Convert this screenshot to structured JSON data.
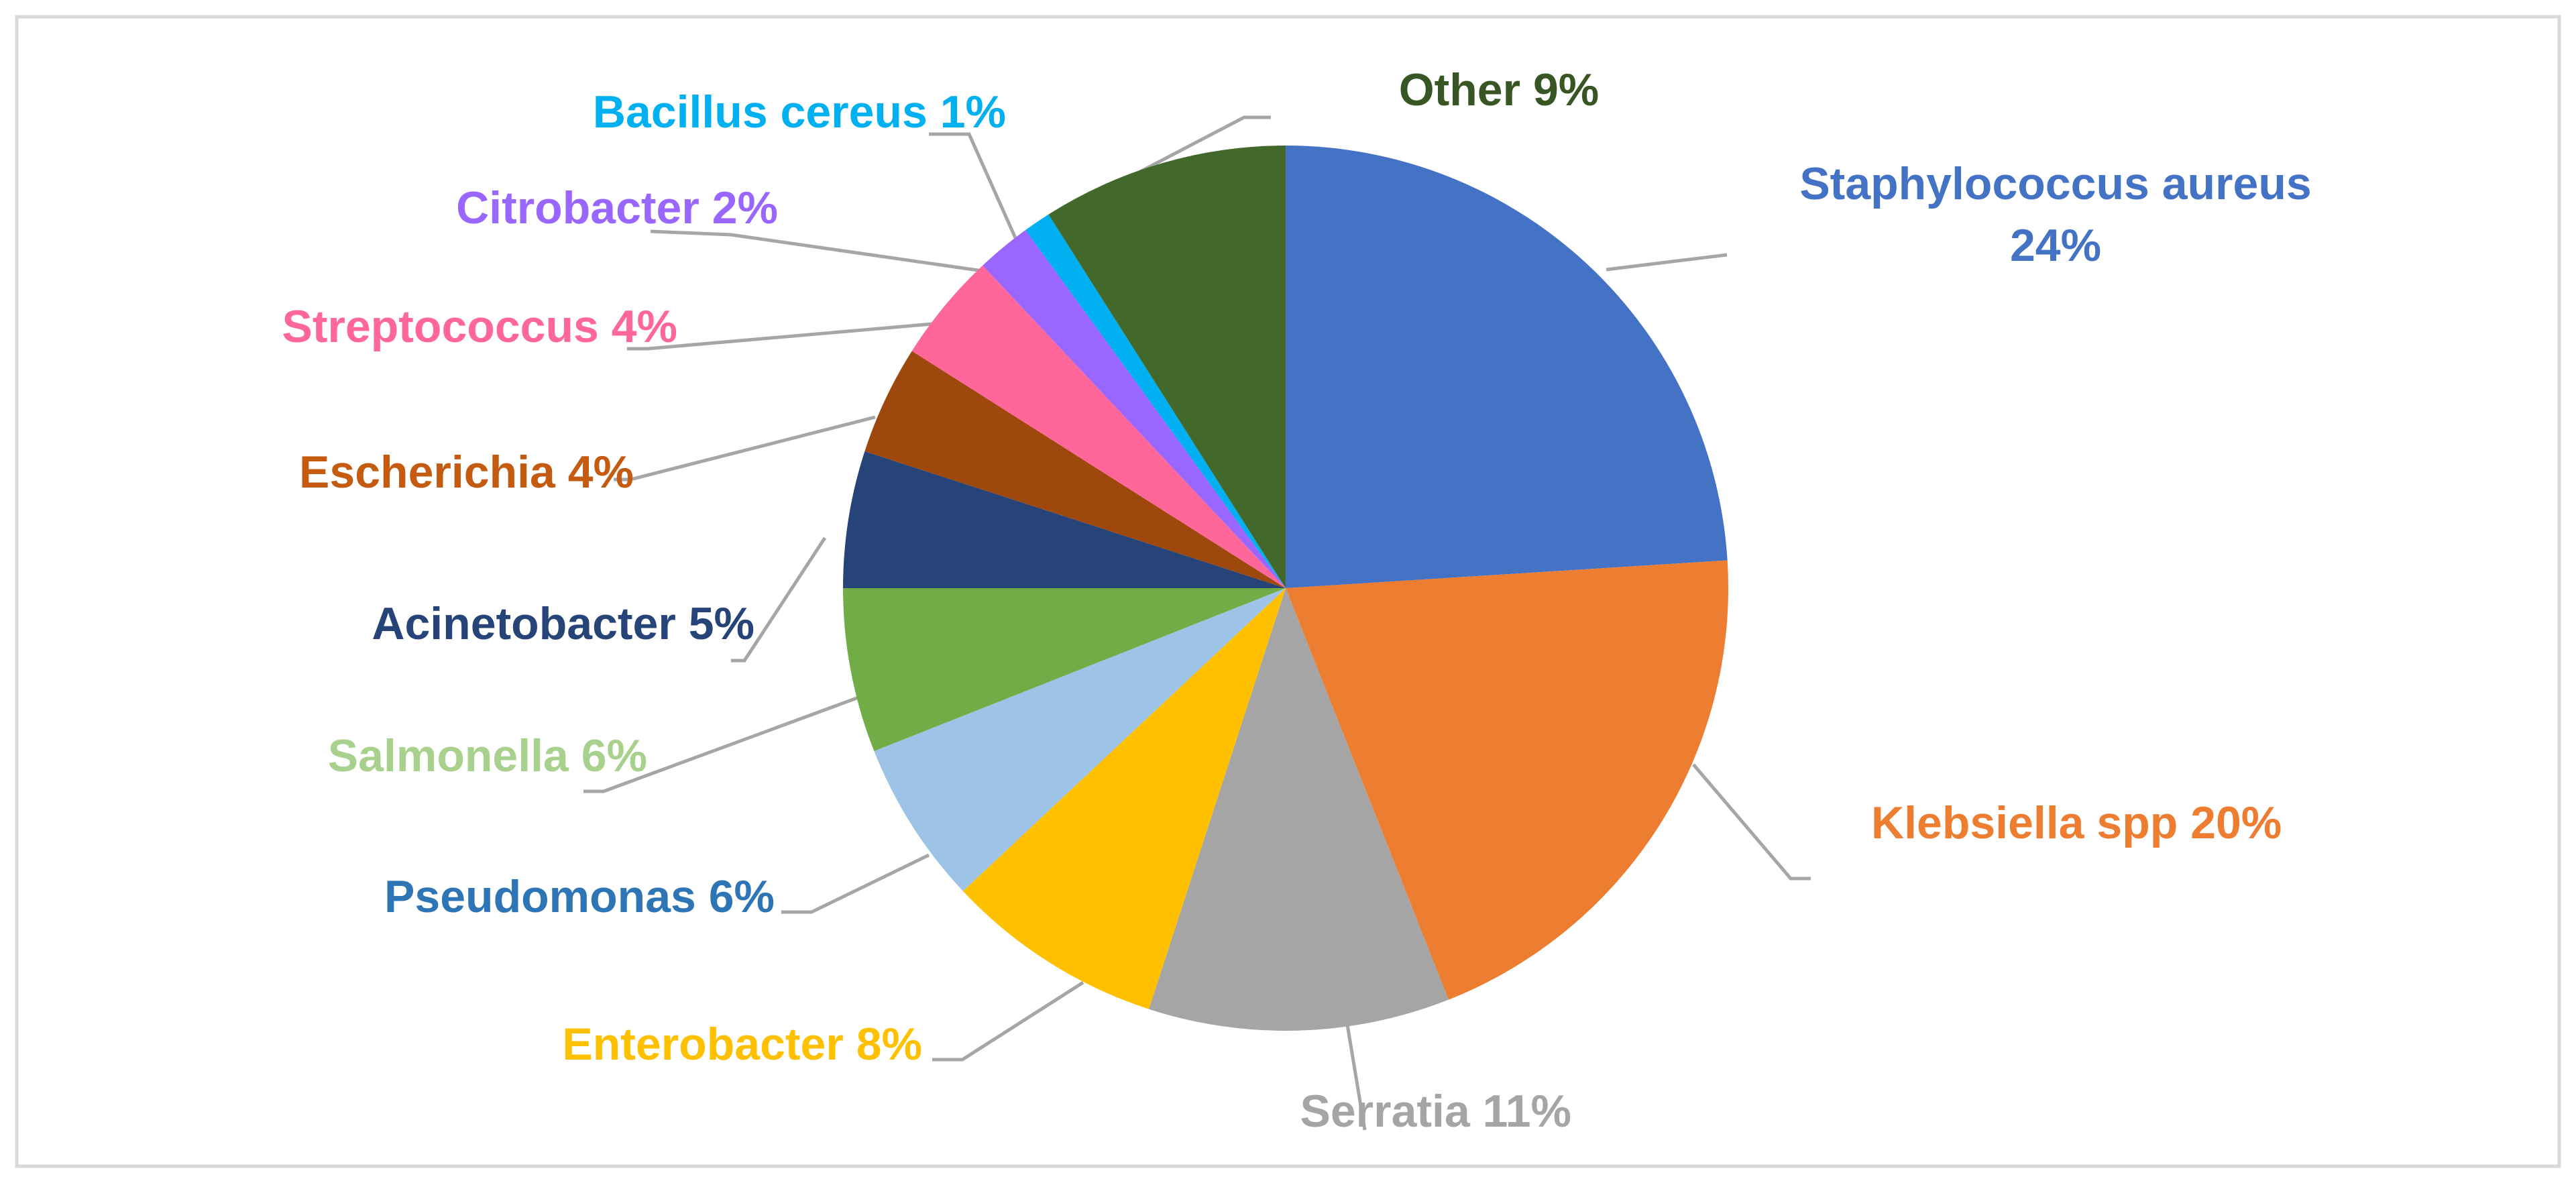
{
  "chart_data": {
    "type": "pie",
    "title": "",
    "slices": [
      {
        "label": "Staphylococcus aureus",
        "value": 24,
        "text_lines": [
          "Staphylococcus aureus",
          "24%"
        ],
        "color": "#4472C4"
      },
      {
        "label": "Klebsiella spp",
        "value": 20,
        "text_lines": [
          "Klebsiella spp 20%"
        ],
        "color": "#ED7D31"
      },
      {
        "label": "Serratia",
        "value": 11,
        "text_lines": [
          "Serratia 11%"
        ],
        "color": "#A5A5A5"
      },
      {
        "label": "Enterobacter",
        "value": 8,
        "text_lines": [
          "Enterobacter 8%"
        ],
        "color": "#FFC000"
      },
      {
        "label": "Pseudomonas",
        "value": 6,
        "text_lines": [
          "Pseudomonas 6%"
        ],
        "color": "#9DC3E6",
        "label_color": "#2E75B6"
      },
      {
        "label": "Salmonella",
        "value": 6,
        "text_lines": [
          "Salmonella 6%"
        ],
        "color": "#70AD47",
        "label_color": "#A9D18E"
      },
      {
        "label": "Acinetobacter",
        "value": 5,
        "text_lines": [
          "Acinetobacter 5%"
        ],
        "color": "#264478"
      },
      {
        "label": "Escherichia",
        "value": 4,
        "text_lines": [
          "Escherichia 4%"
        ],
        "color": "#9E480E",
        "label_color": "#C55A11"
      },
      {
        "label": "Streptococcus",
        "value": 4,
        "text_lines": [
          "Streptococcus 4%"
        ],
        "color": "#FF6699"
      },
      {
        "label": "Citrobacter",
        "value": 2,
        "text_lines": [
          "Citrobacter 2%"
        ],
        "color": "#9966FF"
      },
      {
        "label": "Bacillus cereus",
        "value": 1,
        "text_lines": [
          "Bacillus cereus 1%"
        ],
        "color": "#00B0F0"
      },
      {
        "label": "Other",
        "value": 9,
        "text_lines": [
          "Other 9%"
        ],
        "color": "#43682B",
        "label_color": "#375623"
      }
    ],
    "start_angle": "12 o'clock",
    "direction": "clockwise",
    "legend": "none",
    "leader_line_color": "#A6A6A6",
    "frame_color": "#D9D9D9"
  }
}
